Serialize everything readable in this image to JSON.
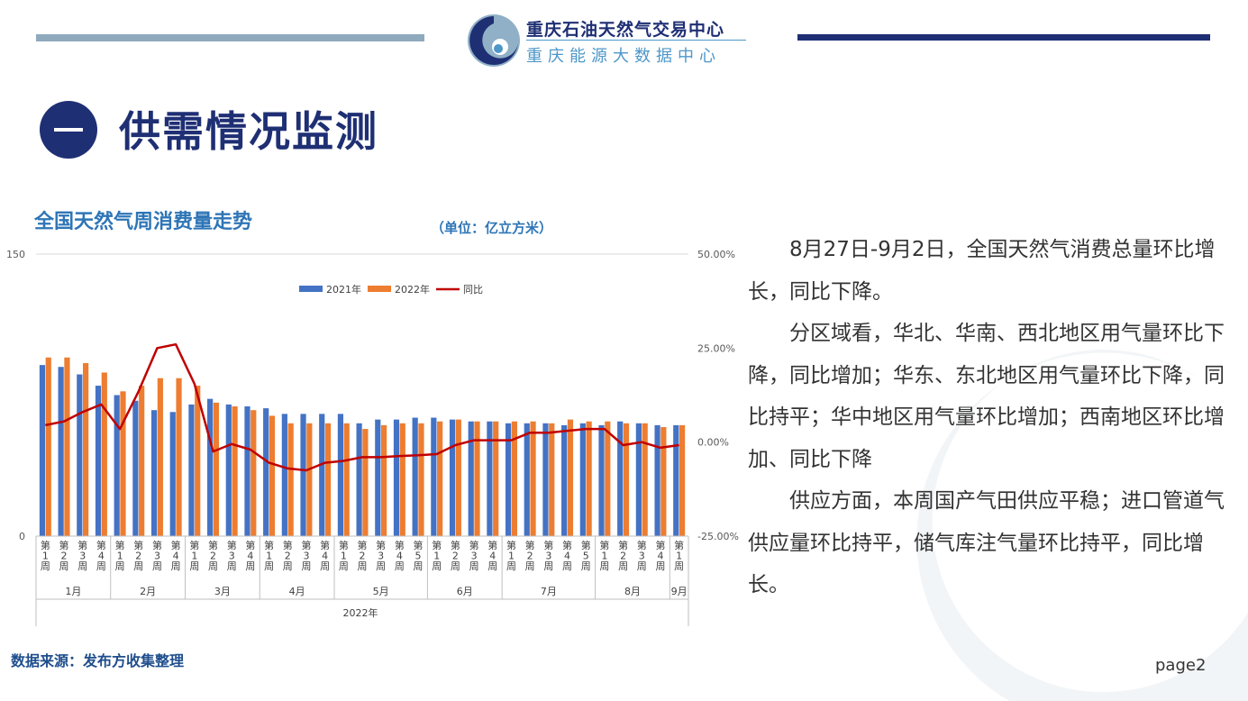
{
  "header": {
    "org_name": "重庆石油天然气交易中心",
    "org_subname": "重庆能源大数据中心",
    "logo_icon": "swirl-logo-icon"
  },
  "section": {
    "number": "一",
    "title": "供需情况监测"
  },
  "chart_title": "全国天然气周消费量走势",
  "unit": "（单位：亿立方米）",
  "paragraphs": [
    "8月27日-9月2日，全国天然气消费总量环比增长，同比下降。",
    "分区域看，华北、华南、西北地区用气量环比下降，同比增加；华东、东北地区用气量环比下降，同比持平；华中地区用气量环比增加；西南地区环比增加、同比下降",
    "供应方面，本周国产气田供应平稳；进口管道气供应量环比持平，储气库注气量环比持平，同比增长。"
  ],
  "source": "数据来源：发布方收集整理",
  "page_label": "page2",
  "chart_data": {
    "type": "bar",
    "categories": [
      "第1周",
      "第2周",
      "第3周",
      "第4周",
      "第1周",
      "第2周",
      "第3周",
      "第4周",
      "第1周",
      "第2周",
      "第3周",
      "第4周",
      "第1周",
      "第2周",
      "第3周",
      "第4周",
      "第1周",
      "第2周",
      "第3周",
      "第4周",
      "第5周",
      "第1周",
      "第2周",
      "第3周",
      "第4周",
      "第1周",
      "第2周",
      "第3周",
      "第4周",
      "第5周",
      "第1周",
      "第2周",
      "第3周",
      "第4周",
      "第1周"
    ],
    "month_groups": [
      {
        "label": "1月",
        "count": 4
      },
      {
        "label": "2月",
        "count": 4
      },
      {
        "label": "3月",
        "count": 4
      },
      {
        "label": "4月",
        "count": 4
      },
      {
        "label": "5月",
        "count": 5
      },
      {
        "label": "6月",
        "count": 4
      },
      {
        "label": "7月",
        "count": 5
      },
      {
        "label": "8月",
        "count": 4
      },
      {
        "label": "9月",
        "count": 1
      }
    ],
    "year_label": "2022年",
    "series": [
      {
        "name": "2021年",
        "color": "#4472c4",
        "axis": "left",
        "values": [
          91,
          90,
          86,
          80,
          75,
          72,
          67,
          66,
          70,
          73,
          70,
          69,
          68,
          65,
          65,
          65,
          65,
          60,
          62,
          62,
          63,
          63,
          62,
          61,
          61,
          60,
          60,
          60,
          59,
          60,
          59,
          61,
          60,
          59,
          59
        ]
      },
      {
        "name": "2022年",
        "color": "#ed7d31",
        "axis": "left",
        "values": [
          95,
          95,
          92,
          87,
          77,
          80,
          84,
          84,
          80,
          71,
          69,
          67,
          64,
          60,
          60,
          60,
          60,
          57,
          59,
          60,
          60,
          61,
          62,
          61,
          61,
          61,
          61,
          60,
          62,
          61,
          61,
          60,
          60,
          58,
          59
        ]
      },
      {
        "name": "同比",
        "color": "#c00000",
        "axis": "right",
        "type": "line",
        "values": [
          4.5,
          5.5,
          8,
          10,
          3.5,
          13.5,
          25,
          26,
          15.5,
          -2.5,
          -0.5,
          -2,
          -5.5,
          -7,
          -7.5,
          -5.5,
          -5,
          -4,
          -4,
          -3.7,
          -3.5,
          -3.2,
          -0.8,
          0.5,
          0.5,
          0.5,
          2.5,
          2.5,
          3,
          3.5,
          3.5,
          -0.8,
          0,
          -1.5,
          -0.8
        ]
      }
    ],
    "y_left": {
      "min": 0,
      "max": 150,
      "ticks": [
        "0",
        "150"
      ]
    },
    "y_right": {
      "min": -25,
      "max": 50,
      "ticks": [
        "-25.00%",
        "0.00%",
        "25.00%",
        "50.00%"
      ]
    },
    "legend_position": "top"
  }
}
